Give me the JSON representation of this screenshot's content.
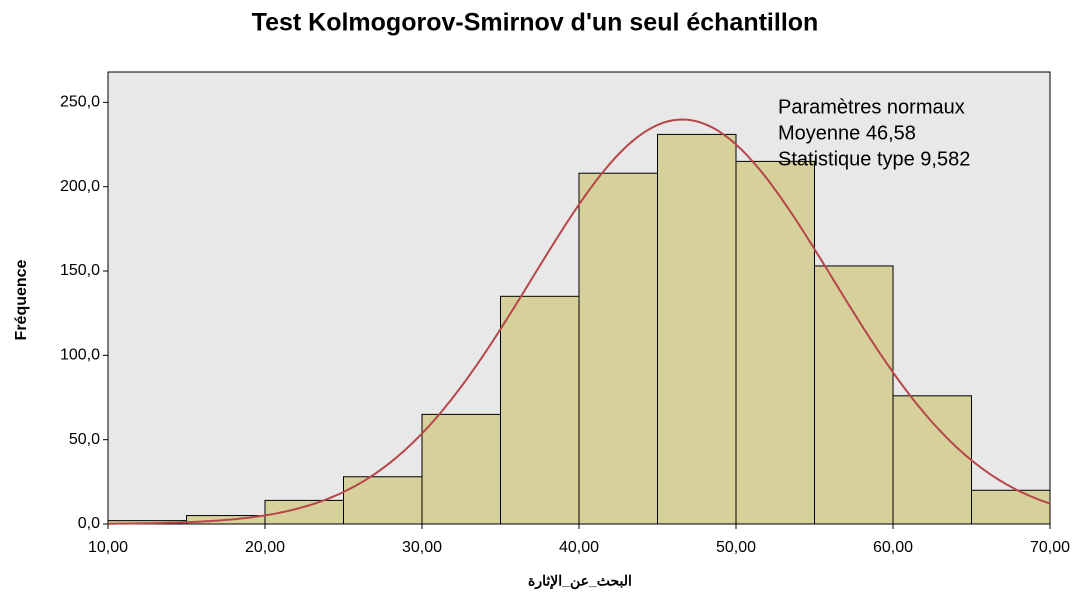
{
  "chart_data": {
    "type": "histogram",
    "title": "Test Kolmogorov-Smirnov d'un seul échantillon",
    "x_label": "البحث_عن_الإثارة",
    "y_label": "Fréquence",
    "bins": [
      10,
      15,
      20,
      25,
      30,
      35,
      40,
      45,
      50,
      55,
      60,
      65,
      70
    ],
    "values": [
      2,
      5,
      14,
      28,
      65,
      135,
      208,
      231,
      215,
      153,
      76,
      20
    ],
    "color": "#d6d09a",
    "xlim": [
      10,
      70
    ],
    "ylim": [
      0,
      268
    ],
    "xticks": [
      {
        "value": 10,
        "label": "10,00"
      },
      {
        "value": 20,
        "label": "20,00"
      },
      {
        "value": 30,
        "label": "30,00"
      },
      {
        "value": 40,
        "label": "40,00"
      },
      {
        "value": 50,
        "label": "50,00"
      },
      {
        "value": 60,
        "label": "60,00"
      },
      {
        "value": 70,
        "label": "70,00"
      }
    ],
    "yticks": [
      {
        "value": 0,
        "label": "0,0"
      },
      {
        "value": 50,
        "label": "50,0"
      },
      {
        "value": 100,
        "label": "100,0"
      },
      {
        "value": 150,
        "label": "150,0"
      },
      {
        "value": 200,
        "label": "200,0"
      },
      {
        "value": 250,
        "label": "250,0"
      }
    ],
    "normal_curve": {
      "title": "Paramètres normaux",
      "color": "#b5474b",
      "mean": {
        "value": 46.58,
        "label": "Moyenne 46,58"
      },
      "sd": {
        "value": 9.582,
        "label": "Statistique type 9,582"
      }
    }
  }
}
